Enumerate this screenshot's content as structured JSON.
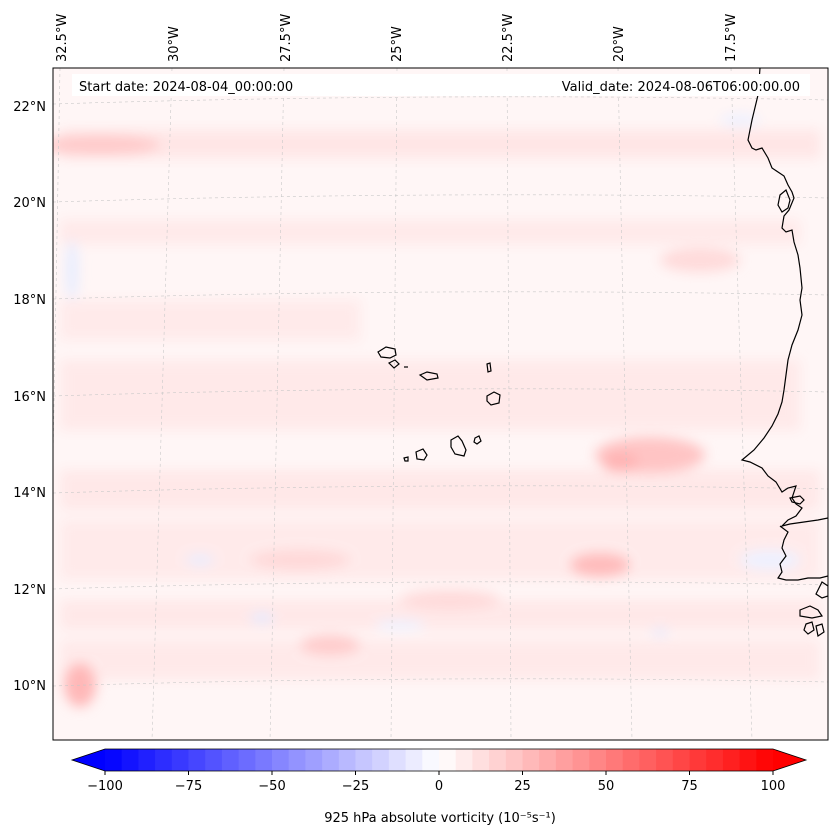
{
  "header": {
    "start_date": "Start date: 2024-08-04_00:00:00",
    "valid_date": "Valid_date: 2024-08-06T06:00:00.00"
  },
  "longitude_labels": [
    "32.5°W",
    "30°W",
    "27.5°W",
    "25°W",
    "22.5°W",
    "20°W",
    "17.5°W"
  ],
  "latitude_labels": [
    "22°N",
    "20°N",
    "18°N",
    "16°N",
    "14°N",
    "12°N",
    "10°N"
  ],
  "colorbar": {
    "label": "925 hPa absolute vorticity (10⁻⁵s⁻¹)",
    "tick_labels": [
      "−100",
      "−75",
      "−50",
      "−25",
      "0",
      "25",
      "50",
      "75",
      "100"
    ],
    "min": -100,
    "max": 100,
    "levels": 40,
    "cmap_low": "#0000ff",
    "cmap_mid": "#ffffff",
    "cmap_high": "#ff0000"
  },
  "colors": {
    "field_background": "#fff6f6",
    "weak_positive": "#ffe0e0",
    "moderate_positive": "#ffcccc",
    "weak_negative": "#eef2ff",
    "coastline": "#000000",
    "gridline": "#c8c8c8"
  }
}
